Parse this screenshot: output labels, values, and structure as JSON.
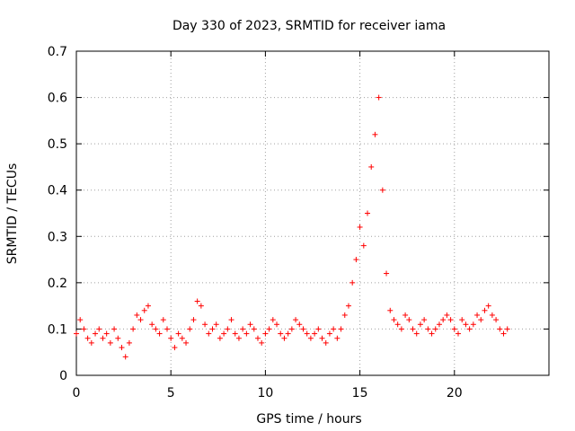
{
  "chart_data": {
    "type": "scatter",
    "title": "Day 330 of 2023, SRMTID for receiver iama",
    "xlabel": "GPS time / hours",
    "ylabel": "SRMTID / TECUs",
    "xlim": [
      0,
      25
    ],
    "ylim": [
      0,
      0.7
    ],
    "xticks": [
      0,
      5,
      10,
      15,
      20
    ],
    "yticks": [
      0,
      0.1,
      0.2,
      0.3,
      0.4,
      0.5,
      0.6,
      0.7
    ],
    "grid": true,
    "marker": "+",
    "color": "#ff0000",
    "series": [
      {
        "name": "SRMTID",
        "x": [
          0.0,
          0.2,
          0.4,
          0.6,
          0.8,
          1.0,
          1.2,
          1.4,
          1.6,
          1.8,
          2.0,
          2.2,
          2.4,
          2.6,
          2.8,
          3.0,
          3.2,
          3.4,
          3.6,
          3.8,
          4.0,
          4.2,
          4.4,
          4.6,
          4.8,
          5.0,
          5.2,
          5.4,
          5.6,
          5.8,
          6.0,
          6.2,
          6.4,
          6.6,
          6.8,
          7.0,
          7.2,
          7.4,
          7.6,
          7.8,
          8.0,
          8.2,
          8.4,
          8.6,
          8.8,
          9.0,
          9.2,
          9.4,
          9.6,
          9.8,
          10.0,
          10.2,
          10.4,
          10.6,
          10.8,
          11.0,
          11.2,
          11.4,
          11.6,
          11.8,
          12.0,
          12.2,
          12.4,
          12.6,
          12.8,
          13.0,
          13.2,
          13.4,
          13.6,
          13.8,
          14.0,
          14.2,
          14.4,
          14.6,
          14.8,
          15.0,
          15.2,
          15.4,
          15.6,
          15.8,
          16.0,
          16.2,
          16.4,
          16.6,
          16.8,
          17.0,
          17.2,
          17.4,
          17.6,
          17.8,
          18.0,
          18.2,
          18.4,
          18.6,
          18.8,
          19.0,
          19.2,
          19.4,
          19.6,
          19.8,
          20.0,
          20.2,
          20.4,
          20.6,
          20.8,
          21.0,
          21.2,
          21.4,
          21.6,
          21.8,
          22.0,
          22.2,
          22.4,
          22.6,
          22.8
        ],
        "y": [
          0.09,
          0.12,
          0.1,
          0.08,
          0.07,
          0.09,
          0.1,
          0.08,
          0.09,
          0.07,
          0.1,
          0.08,
          0.06,
          0.04,
          0.07,
          0.1,
          0.13,
          0.12,
          0.14,
          0.15,
          0.11,
          0.1,
          0.09,
          0.12,
          0.1,
          0.08,
          0.06,
          0.09,
          0.08,
          0.07,
          0.1,
          0.12,
          0.16,
          0.15,
          0.11,
          0.09,
          0.1,
          0.11,
          0.08,
          0.09,
          0.1,
          0.12,
          0.09,
          0.08,
          0.1,
          0.09,
          0.11,
          0.1,
          0.08,
          0.07,
          0.09,
          0.1,
          0.12,
          0.11,
          0.09,
          0.08,
          0.09,
          0.1,
          0.12,
          0.11,
          0.1,
          0.09,
          0.08,
          0.09,
          0.1,
          0.08,
          0.07,
          0.09,
          0.1,
          0.08,
          0.1,
          0.13,
          0.15,
          0.2,
          0.25,
          0.32,
          0.28,
          0.35,
          0.45,
          0.52,
          0.6,
          0.4,
          0.22,
          0.14,
          0.12,
          0.11,
          0.1,
          0.13,
          0.12,
          0.1,
          0.09,
          0.11,
          0.12,
          0.1,
          0.09,
          0.1,
          0.11,
          0.12,
          0.13,
          0.12,
          0.1,
          0.09,
          0.12,
          0.11,
          0.1,
          0.11,
          0.13,
          0.12,
          0.14,
          0.15,
          0.13,
          0.12,
          0.1,
          0.09,
          0.1
        ]
      }
    ]
  }
}
